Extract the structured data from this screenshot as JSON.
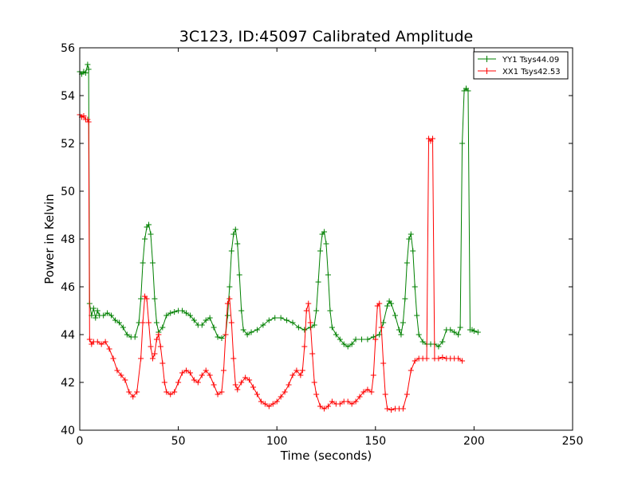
{
  "chart_data": {
    "type": "line",
    "title": "3C123, ID:45097 Calibrated Amplitude",
    "xlabel": "Time (seconds)",
    "ylabel": "Power in Kelvin",
    "xlim": [
      0,
      250
    ],
    "ylim": [
      40,
      56
    ],
    "xticks": [
      "0",
      "50",
      "100",
      "150",
      "200",
      "250"
    ],
    "yticks": [
      "40",
      "42",
      "44",
      "46",
      "48",
      "50",
      "52",
      "54",
      "56"
    ],
    "grid": false,
    "legend_position": "top-right",
    "marker": "+",
    "series": [
      {
        "name": "YY1 Tsys44.09",
        "color": "#008000",
        "points": [
          [
            0,
            55.0
          ],
          [
            1,
            54.9
          ],
          [
            2,
            55.0
          ],
          [
            3,
            54.95
          ],
          [
            4,
            55.3
          ],
          [
            4.5,
            55.1
          ],
          [
            5,
            45.3
          ],
          [
            6,
            44.8
          ],
          [
            7,
            45.1
          ],
          [
            8,
            44.7
          ],
          [
            9,
            45.0
          ],
          [
            10,
            44.8
          ],
          [
            12,
            44.8
          ],
          [
            14,
            44.9
          ],
          [
            16,
            44.8
          ],
          [
            18,
            44.6
          ],
          [
            20,
            44.5
          ],
          [
            22,
            44.3
          ],
          [
            24,
            44.0
          ],
          [
            26,
            43.9
          ],
          [
            28,
            43.9
          ],
          [
            30,
            44.5
          ],
          [
            31,
            45.5
          ],
          [
            32,
            47.0
          ],
          [
            33,
            48.0
          ],
          [
            34,
            48.5
          ],
          [
            35,
            48.6
          ],
          [
            36,
            48.2
          ],
          [
            37,
            47.0
          ],
          [
            38,
            45.5
          ],
          [
            39,
            44.5
          ],
          [
            40,
            44.1
          ],
          [
            42,
            44.3
          ],
          [
            44,
            44.8
          ],
          [
            46,
            44.9
          ],
          [
            48,
            44.95
          ],
          [
            50,
            45.0
          ],
          [
            52,
            45.0
          ],
          [
            54,
            44.9
          ],
          [
            56,
            44.8
          ],
          [
            58,
            44.6
          ],
          [
            60,
            44.4
          ],
          [
            62,
            44.4
          ],
          [
            64,
            44.6
          ],
          [
            66,
            44.7
          ],
          [
            68,
            44.3
          ],
          [
            70,
            43.9
          ],
          [
            72,
            43.85
          ],
          [
            74,
            44.0
          ],
          [
            75,
            44.8
          ],
          [
            76,
            46.0
          ],
          [
            77,
            47.5
          ],
          [
            78,
            48.2
          ],
          [
            79,
            48.4
          ],
          [
            80,
            47.8
          ],
          [
            81,
            46.5
          ],
          [
            82,
            45.0
          ],
          [
            83,
            44.2
          ],
          [
            85,
            44.0
          ],
          [
            87,
            44.1
          ],
          [
            90,
            44.2
          ],
          [
            93,
            44.4
          ],
          [
            96,
            44.6
          ],
          [
            99,
            44.7
          ],
          [
            102,
            44.7
          ],
          [
            105,
            44.6
          ],
          [
            108,
            44.5
          ],
          [
            111,
            44.3
          ],
          [
            114,
            44.2
          ],
          [
            117,
            44.3
          ],
          [
            119,
            44.4
          ],
          [
            120,
            45.0
          ],
          [
            121,
            46.2
          ],
          [
            122,
            47.5
          ],
          [
            123,
            48.2
          ],
          [
            124,
            48.3
          ],
          [
            125,
            47.8
          ],
          [
            126,
            46.5
          ],
          [
            127,
            45.0
          ],
          [
            128,
            44.3
          ],
          [
            130,
            44.0
          ],
          [
            132,
            43.8
          ],
          [
            134,
            43.6
          ],
          [
            136,
            43.5
          ],
          [
            138,
            43.6
          ],
          [
            140,
            43.8
          ],
          [
            143,
            43.8
          ],
          [
            146,
            43.8
          ],
          [
            149,
            43.9
          ],
          [
            152,
            44.0
          ],
          [
            154,
            44.5
          ],
          [
            156,
            45.2
          ],
          [
            157,
            45.4
          ],
          [
            158,
            45.3
          ],
          [
            160,
            44.8
          ],
          [
            162,
            44.2
          ],
          [
            163,
            44.0
          ],
          [
            164,
            44.5
          ],
          [
            165,
            45.5
          ],
          [
            166,
            47.0
          ],
          [
            167,
            48.0
          ],
          [
            168,
            48.2
          ],
          [
            169,
            47.5
          ],
          [
            170,
            46.0
          ],
          [
            171,
            44.8
          ],
          [
            172,
            44.0
          ],
          [
            174,
            43.7
          ],
          [
            176,
            43.6
          ],
          [
            178,
            43.6
          ],
          [
            180,
            43.6
          ],
          [
            182,
            43.5
          ],
          [
            184,
            43.7
          ],
          [
            186,
            44.2
          ],
          [
            188,
            44.2
          ],
          [
            190,
            44.1
          ],
          [
            192,
            44.0
          ],
          [
            193,
            44.3
          ],
          [
            194,
            52.0
          ],
          [
            195,
            54.2
          ],
          [
            196,
            54.3
          ],
          [
            197,
            54.2
          ],
          [
            198,
            44.2
          ],
          [
            199,
            44.2
          ],
          [
            200,
            44.15
          ],
          [
            202,
            44.1
          ]
        ]
      },
      {
        "name": "XX1 Tsys42.53",
        "color": "#ff0000",
        "points": [
          [
            0,
            53.2
          ],
          [
            1,
            53.1
          ],
          [
            2,
            53.15
          ],
          [
            3,
            53.0
          ],
          [
            4,
            53.0
          ],
          [
            4.5,
            52.9
          ],
          [
            5,
            43.8
          ],
          [
            6,
            43.6
          ],
          [
            7,
            43.7
          ],
          [
            9,
            43.7
          ],
          [
            11,
            43.6
          ],
          [
            13,
            43.7
          ],
          [
            15,
            43.4
          ],
          [
            17,
            43.0
          ],
          [
            19,
            42.5
          ],
          [
            21,
            42.3
          ],
          [
            23,
            42.1
          ],
          [
            25,
            41.6
          ],
          [
            27,
            41.4
          ],
          [
            29,
            41.6
          ],
          [
            31,
            43.0
          ],
          [
            32,
            44.5
          ],
          [
            33,
            45.6
          ],
          [
            34,
            45.5
          ],
          [
            35,
            44.5
          ],
          [
            36,
            43.5
          ],
          [
            37,
            43.0
          ],
          [
            38,
            43.2
          ],
          [
            39,
            43.8
          ],
          [
            40,
            44.0
          ],
          [
            41,
            43.5
          ],
          [
            42,
            42.8
          ],
          [
            43,
            42.0
          ],
          [
            44,
            41.6
          ],
          [
            46,
            41.5
          ],
          [
            48,
            41.6
          ],
          [
            50,
            42.0
          ],
          [
            52,
            42.4
          ],
          [
            54,
            42.5
          ],
          [
            56,
            42.4
          ],
          [
            58,
            42.1
          ],
          [
            60,
            42.0
          ],
          [
            62,
            42.3
          ],
          [
            64,
            42.5
          ],
          [
            66,
            42.3
          ],
          [
            68,
            41.9
          ],
          [
            70,
            41.5
          ],
          [
            72,
            41.6
          ],
          [
            73,
            42.5
          ],
          [
            74,
            44.0
          ],
          [
            75,
            45.3
          ],
          [
            76,
            45.5
          ],
          [
            77,
            44.5
          ],
          [
            78,
            43.0
          ],
          [
            79,
            41.9
          ],
          [
            80,
            41.7
          ],
          [
            82,
            42.0
          ],
          [
            84,
            42.2
          ],
          [
            86,
            42.1
          ],
          [
            88,
            41.8
          ],
          [
            90,
            41.5
          ],
          [
            92,
            41.2
          ],
          [
            94,
            41.1
          ],
          [
            96,
            41.0
          ],
          [
            98,
            41.1
          ],
          [
            100,
            41.2
          ],
          [
            102,
            41.4
          ],
          [
            104,
            41.6
          ],
          [
            106,
            41.9
          ],
          [
            108,
            42.3
          ],
          [
            110,
            42.5
          ],
          [
            112,
            42.3
          ],
          [
            113,
            42.5
          ],
          [
            114,
            43.5
          ],
          [
            115,
            45.0
          ],
          [
            116,
            45.3
          ],
          [
            117,
            44.5
          ],
          [
            118,
            43.2
          ],
          [
            119,
            42.0
          ],
          [
            120,
            41.5
          ],
          [
            122,
            41.0
          ],
          [
            124,
            40.9
          ],
          [
            126,
            41.0
          ],
          [
            128,
            41.2
          ],
          [
            130,
            41.1
          ],
          [
            132,
            41.1
          ],
          [
            134,
            41.2
          ],
          [
            136,
            41.2
          ],
          [
            138,
            41.1
          ],
          [
            140,
            41.2
          ],
          [
            142,
            41.4
          ],
          [
            144,
            41.6
          ],
          [
            146,
            41.7
          ],
          [
            148,
            41.6
          ],
          [
            149,
            42.3
          ],
          [
            150,
            43.8
          ],
          [
            151,
            45.2
          ],
          [
            152,
            45.3
          ],
          [
            153,
            44.3
          ],
          [
            154,
            42.8
          ],
          [
            155,
            41.5
          ],
          [
            156,
            40.9
          ],
          [
            158,
            40.85
          ],
          [
            160,
            40.9
          ],
          [
            162,
            40.9
          ],
          [
            164,
            40.9
          ],
          [
            166,
            41.5
          ],
          [
            168,
            42.5
          ],
          [
            170,
            42.9
          ],
          [
            172,
            43.0
          ],
          [
            174,
            43.0
          ],
          [
            176,
            43.0
          ],
          [
            177,
            52.2
          ],
          [
            178,
            52.1
          ],
          [
            179,
            52.2
          ],
          [
            180,
            43.0
          ],
          [
            182,
            43.0
          ],
          [
            184,
            43.05
          ],
          [
            186,
            43.0
          ],
          [
            188,
            43.0
          ],
          [
            190,
            43.0
          ],
          [
            192,
            43.0
          ],
          [
            194,
            42.9
          ]
        ]
      }
    ]
  }
}
